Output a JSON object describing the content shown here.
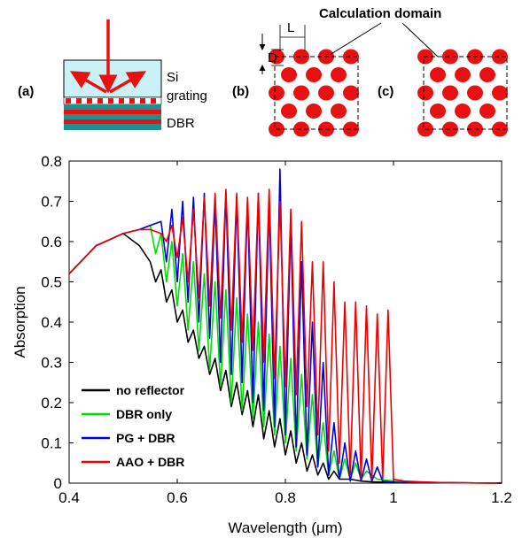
{
  "panel_labels": {
    "a": "(a)",
    "b": "(b)",
    "c": "(c)"
  },
  "schematic": {
    "layer_si": "Si",
    "layer_grating": "grating",
    "layer_dbr": "DBR",
    "calc_domain": "Calculation domain",
    "dim_d": "D",
    "dim_l": "L"
  },
  "chart_data": {
    "type": "line",
    "title": "",
    "xlabel": "Wavelength (μm)",
    "ylabel": "Absorption",
    "xlim": [
      0.4,
      1.2
    ],
    "ylim": [
      0,
      0.8
    ],
    "xticks": [
      0.4,
      0.6,
      0.8,
      1.0,
      1.2
    ],
    "xtick_labels": [
      "0.4",
      "0.6",
      "0.8",
      "1",
      "1.2"
    ],
    "yticks": [
      0,
      0.1,
      0.2,
      0.3,
      0.4,
      0.5,
      0.6,
      0.7,
      0.8
    ],
    "ytick_labels": [
      "0",
      "0.1",
      "0.2",
      "0.3",
      "0.4",
      "0.5",
      "0.6",
      "0.7",
      "0.8"
    ],
    "grid": false,
    "legend_position": "bottom-left",
    "series": [
      {
        "name": "no reflector",
        "color": "#000000",
        "x": [
          0.4,
          0.45,
          0.5,
          0.53,
          0.55,
          0.56,
          0.57,
          0.58,
          0.59,
          0.6,
          0.61,
          0.62,
          0.63,
          0.64,
          0.65,
          0.66,
          0.67,
          0.68,
          0.69,
          0.7,
          0.71,
          0.72,
          0.73,
          0.74,
          0.75,
          0.76,
          0.77,
          0.78,
          0.79,
          0.8,
          0.81,
          0.82,
          0.83,
          0.84,
          0.85,
          0.86,
          0.87,
          0.88,
          0.89,
          0.9,
          0.92,
          0.94,
          0.96,
          1.0,
          1.05,
          1.1,
          1.2
        ],
        "y": [
          0.52,
          0.59,
          0.62,
          0.59,
          0.55,
          0.5,
          0.53,
          0.45,
          0.48,
          0.4,
          0.43,
          0.35,
          0.38,
          0.31,
          0.34,
          0.27,
          0.31,
          0.23,
          0.28,
          0.19,
          0.25,
          0.17,
          0.23,
          0.14,
          0.22,
          0.11,
          0.18,
          0.09,
          0.16,
          0.07,
          0.13,
          0.05,
          0.1,
          0.03,
          0.07,
          0.02,
          0.05,
          0.01,
          0.03,
          0.01,
          0.01,
          0.005,
          0.003,
          0.002,
          0.001,
          0.001,
          0.0
        ]
      },
      {
        "name": "DBR only",
        "color": "#00dd00",
        "x": [
          0.4,
          0.45,
          0.5,
          0.53,
          0.55,
          0.56,
          0.57,
          0.58,
          0.59,
          0.6,
          0.61,
          0.62,
          0.63,
          0.64,
          0.65,
          0.66,
          0.67,
          0.68,
          0.69,
          0.7,
          0.71,
          0.72,
          0.73,
          0.74,
          0.75,
          0.76,
          0.77,
          0.78,
          0.79,
          0.8,
          0.81,
          0.82,
          0.83,
          0.84,
          0.85,
          0.86,
          0.87,
          0.88,
          0.89,
          0.9,
          0.91,
          0.92,
          0.93,
          0.94,
          0.95,
          0.97,
          1.0,
          1.05,
          1.1,
          1.2
        ],
        "y": [
          0.52,
          0.59,
          0.62,
          0.63,
          0.64,
          0.57,
          0.62,
          0.5,
          0.6,
          0.44,
          0.57,
          0.38,
          0.55,
          0.33,
          0.52,
          0.28,
          0.5,
          0.24,
          0.48,
          0.2,
          0.46,
          0.18,
          0.42,
          0.16,
          0.4,
          0.14,
          0.37,
          0.12,
          0.34,
          0.1,
          0.31,
          0.08,
          0.27,
          0.06,
          0.22,
          0.04,
          0.15,
          0.02,
          0.08,
          0.01,
          0.06,
          0.01,
          0.05,
          0.01,
          0.03,
          0.01,
          0.005,
          0.002,
          0.001,
          0.0
        ]
      },
      {
        "name": "PG + DBR",
        "color": "#0000dd",
        "x": [
          0.4,
          0.45,
          0.5,
          0.53,
          0.55,
          0.57,
          0.58,
          0.59,
          0.6,
          0.61,
          0.62,
          0.63,
          0.64,
          0.65,
          0.66,
          0.67,
          0.68,
          0.69,
          0.7,
          0.71,
          0.72,
          0.73,
          0.74,
          0.75,
          0.76,
          0.77,
          0.78,
          0.79,
          0.8,
          0.81,
          0.82,
          0.83,
          0.84,
          0.85,
          0.86,
          0.87,
          0.88,
          0.89,
          0.9,
          0.91,
          0.92,
          0.93,
          0.94,
          0.95,
          0.96,
          0.97,
          0.98,
          1.0,
          1.05,
          1.1,
          1.2
        ],
        "y": [
          0.52,
          0.59,
          0.62,
          0.63,
          0.64,
          0.65,
          0.55,
          0.68,
          0.5,
          0.7,
          0.45,
          0.71,
          0.4,
          0.72,
          0.36,
          0.7,
          0.3,
          0.72,
          0.27,
          0.71,
          0.25,
          0.7,
          0.2,
          0.72,
          0.18,
          0.7,
          0.14,
          0.78,
          0.12,
          0.65,
          0.09,
          0.55,
          0.07,
          0.4,
          0.04,
          0.3,
          0.02,
          0.15,
          0.01,
          0.1,
          0.005,
          0.08,
          0.005,
          0.06,
          0.005,
          0.04,
          0.005,
          0.002,
          0.001,
          0.001,
          0.0
        ]
      },
      {
        "name": "AAO + DBR",
        "color": "#ee0000",
        "x": [
          0.4,
          0.45,
          0.5,
          0.53,
          0.55,
          0.57,
          0.58,
          0.59,
          0.6,
          0.61,
          0.62,
          0.63,
          0.64,
          0.65,
          0.66,
          0.67,
          0.68,
          0.69,
          0.7,
          0.71,
          0.72,
          0.73,
          0.74,
          0.75,
          0.76,
          0.77,
          0.78,
          0.79,
          0.8,
          0.81,
          0.82,
          0.83,
          0.84,
          0.85,
          0.86,
          0.87,
          0.88,
          0.89,
          0.9,
          0.91,
          0.92,
          0.93,
          0.94,
          0.95,
          0.96,
          0.97,
          0.98,
          0.99,
          1.0,
          1.02,
          1.05,
          1.1,
          1.2
        ],
        "y": [
          0.52,
          0.59,
          0.62,
          0.63,
          0.63,
          0.62,
          0.6,
          0.64,
          0.56,
          0.66,
          0.5,
          0.68,
          0.46,
          0.71,
          0.44,
          0.72,
          0.41,
          0.73,
          0.38,
          0.72,
          0.35,
          0.71,
          0.33,
          0.72,
          0.3,
          0.73,
          0.26,
          0.7,
          0.24,
          0.68,
          0.22,
          0.65,
          0.19,
          0.55,
          0.12,
          0.55,
          0.08,
          0.5,
          0.05,
          0.45,
          0.02,
          0.45,
          0.01,
          0.44,
          0.01,
          0.42,
          0.01,
          0.43,
          0.01,
          0.005,
          0.003,
          0.001,
          0.0
        ]
      }
    ]
  }
}
